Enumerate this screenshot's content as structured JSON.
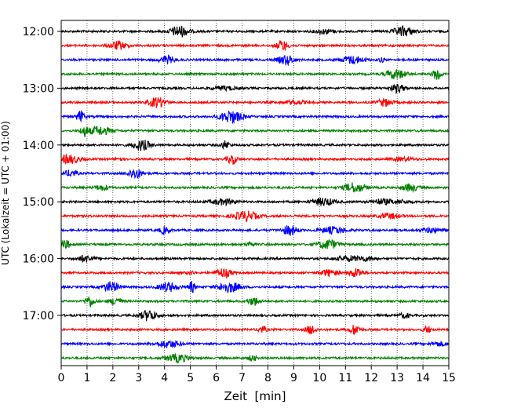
{
  "chart_data": {
    "type": "line",
    "title": "",
    "xlabel": "Zeit  [min]",
    "ylabel": "UTC (Lokalzeit = UTC + 01:00)",
    "xlim": [
      0,
      15
    ],
    "x_ticks": [
      "0",
      "1",
      "2",
      "3",
      "4",
      "5",
      "6",
      "7",
      "8",
      "9",
      "10",
      "11",
      "12",
      "13",
      "14",
      "15"
    ],
    "y_ticks": [
      "12:00",
      "13:00",
      "14:00",
      "15:00",
      "16:00",
      "17:00"
    ],
    "grid": "vertical dotted at each minute",
    "legend": "none",
    "trace_colors": [
      "#000000",
      "#ff0000",
      "#0000ff",
      "#008000"
    ],
    "trace_interval_min": 15,
    "traces": [
      {
        "start": "12:00",
        "color": "#000000"
      },
      {
        "start": "12:15",
        "color": "#ff0000"
      },
      {
        "start": "12:30",
        "color": "#0000ff"
      },
      {
        "start": "12:45",
        "color": "#008000"
      },
      {
        "start": "13:00",
        "color": "#000000"
      },
      {
        "start": "13:15",
        "color": "#ff0000"
      },
      {
        "start": "13:30",
        "color": "#0000ff"
      },
      {
        "start": "13:45",
        "color": "#008000"
      },
      {
        "start": "14:00",
        "color": "#000000"
      },
      {
        "start": "14:15",
        "color": "#ff0000"
      },
      {
        "start": "14:30",
        "color": "#0000ff"
      },
      {
        "start": "14:45",
        "color": "#008000"
      },
      {
        "start": "15:00",
        "color": "#000000"
      },
      {
        "start": "15:15",
        "color": "#ff0000"
      },
      {
        "start": "15:30",
        "color": "#0000ff"
      },
      {
        "start": "15:45",
        "color": "#008000"
      },
      {
        "start": "16:00",
        "color": "#000000"
      },
      {
        "start": "16:15",
        "color": "#ff0000"
      },
      {
        "start": "16:30",
        "color": "#0000ff"
      },
      {
        "start": "16:45",
        "color": "#008000"
      },
      {
        "start": "17:00",
        "color": "#000000"
      },
      {
        "start": "17:15",
        "color": "#ff0000"
      },
      {
        "start": "17:30",
        "color": "#0000ff"
      },
      {
        "start": "17:45",
        "color": "#008000"
      }
    ]
  }
}
